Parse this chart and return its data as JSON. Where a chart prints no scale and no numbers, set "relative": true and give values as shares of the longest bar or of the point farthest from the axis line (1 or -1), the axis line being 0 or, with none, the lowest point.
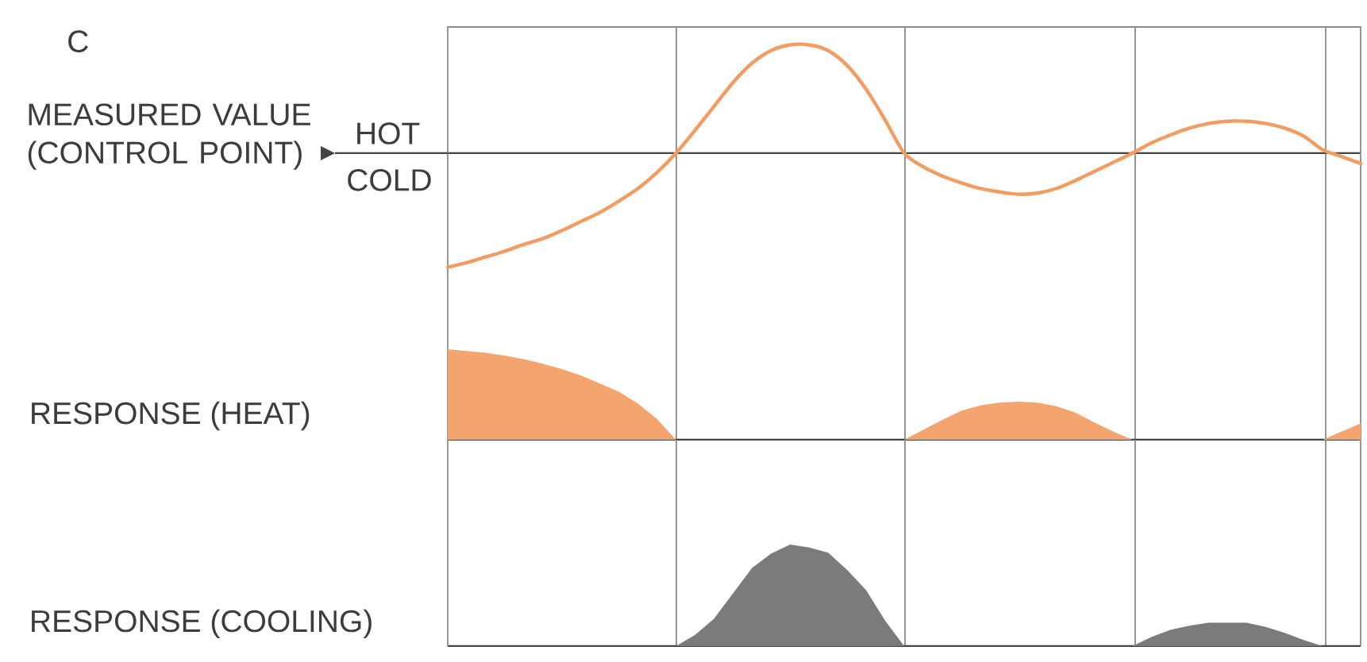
{
  "chart_data": [
    {
      "type": "line",
      "ylabel": "MEASURED VALUE (CONTROL POINT)",
      "annotations": [
        "C",
        "HOT",
        "COLD"
      ],
      "grid": "x",
      "categories": [
        null,
        null,
        null,
        null,
        null,
        null,
        null,
        null,
        null,
        null,
        null,
        null,
        null,
        null,
        null,
        null,
        null,
        null,
        null,
        null,
        null,
        null,
        null,
        null,
        null,
        null,
        null,
        null,
        null,
        null,
        null,
        null,
        null,
        null,
        null,
        null,
        null,
        null,
        null,
        null,
        null,
        null,
        null,
        null,
        null,
        null,
        null,
        null,
        null
      ],
      "values": [
        -1.0,
        -0.96,
        -0.91,
        -0.86,
        -0.8,
        -0.75,
        -0.68,
        -0.6,
        -0.52,
        -0.42,
        -0.31,
        -0.17,
        0,
        0.2,
        0.41,
        0.62,
        0.79,
        0.9,
        0.95,
        0.95,
        0.9,
        0.77,
        0.56,
        0.29,
        0,
        -0.12,
        -0.2,
        -0.26,
        -0.31,
        -0.34,
        -0.36,
        -0.35,
        -0.31,
        -0.24,
        -0.16,
        -0.08,
        0,
        0.09,
        0.16,
        0.22,
        0.26,
        0.28,
        0.28,
        0.26,
        0.22,
        0.15,
        0.03,
        -0.03,
        -0.09
      ],
      "color": "#f39c62",
      "relative": true
    },
    {
      "type": "area",
      "ylabel": "RESPONSE (HEAT)",
      "grid": "x",
      "categories": [
        null,
        null,
        null,
        null,
        null,
        null,
        null,
        null,
        null,
        null,
        null,
        null,
        null,
        null,
        null,
        null,
        null,
        null,
        null,
        null,
        null,
        null,
        null,
        null,
        null,
        null,
        null,
        null,
        null,
        null,
        null,
        null,
        null,
        null,
        null,
        null,
        null,
        null,
        null,
        null,
        null,
        null,
        null,
        null,
        null,
        null,
        null,
        null,
        null
      ],
      "values": [
        1.0,
        0.98,
        0.96,
        0.93,
        0.89,
        0.84,
        0.78,
        0.71,
        0.62,
        0.53,
        0.4,
        0.23,
        0,
        0,
        0,
        0,
        0,
        0,
        0,
        0,
        0,
        0,
        0,
        0,
        0,
        0.11,
        0.22,
        0.32,
        0.38,
        0.41,
        0.42,
        0.41,
        0.37,
        0.3,
        0.19,
        0.09,
        0,
        0,
        0,
        0,
        0,
        0,
        0,
        0,
        0,
        0,
        0,
        0.09,
        0.18
      ],
      "color": "#f4a46e",
      "relative": true
    },
    {
      "type": "area",
      "ylabel": "RESPONSE (COOLING)",
      "grid": "x",
      "categories": [
        null,
        null,
        null,
        null,
        null,
        null,
        null,
        null,
        null,
        null,
        null,
        null,
        null,
        null,
        null,
        null,
        null,
        null,
        null,
        null,
        null,
        null,
        null,
        null,
        null,
        null,
        null,
        null,
        null,
        null,
        null,
        null,
        null,
        null,
        null,
        null,
        null,
        null,
        null,
        null,
        null,
        null,
        null,
        null,
        null,
        null,
        null,
        null,
        null
      ],
      "values": [
        0,
        0,
        0,
        0,
        0,
        0,
        0,
        0,
        0,
        0,
        0,
        0,
        0,
        0.11,
        0.27,
        0.52,
        0.77,
        0.91,
        1.0,
        0.97,
        0.92,
        0.75,
        0.55,
        0.25,
        0,
        0,
        0,
        0,
        0,
        0,
        0,
        0,
        0,
        0,
        0,
        0,
        0,
        0.09,
        0.16,
        0.2,
        0.23,
        0.23,
        0.23,
        0.19,
        0.13,
        0.06,
        0,
        0,
        0
      ],
      "color": "#7b7b7b",
      "relative": true
    }
  ]
}
